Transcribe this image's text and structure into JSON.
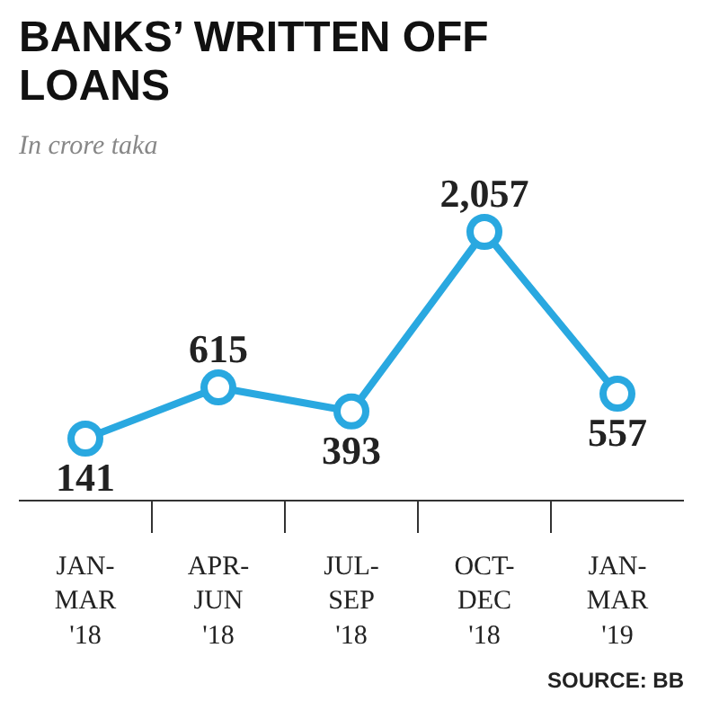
{
  "chart_data": {
    "type": "line",
    "title": "BANKS’ WRITTEN OFF LOANS",
    "subtitle": "In crore taka",
    "categories": [
      "JAN-MAR '18",
      "APR-JUN '18",
      "JUL-SEP '18",
      "OCT-DEC '18",
      "JAN-MAR '19"
    ],
    "values": [
      141,
      615,
      393,
      2057,
      557
    ],
    "color": "#29a8e0",
    "marker": "circle",
    "value_labels": [
      "141",
      "615",
      "393",
      "2,057",
      "557"
    ],
    "annotations": [
      "SOURCE: BB"
    ]
  }
}
